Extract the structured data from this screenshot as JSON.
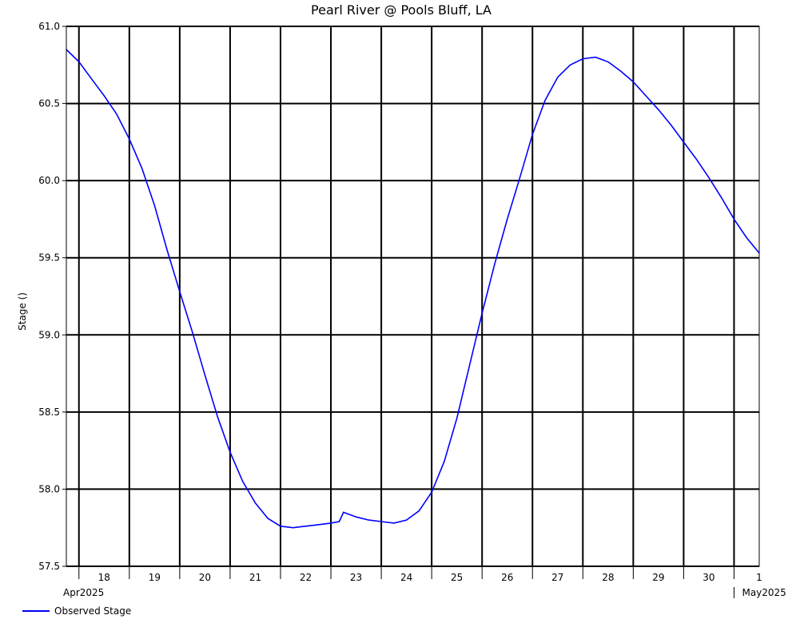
{
  "chart_data": {
    "type": "line",
    "title": "Pearl River @ Pools Bluff, LA",
    "ylabel": "Stage ()",
    "xlabel": "",
    "ylim": [
      57.5,
      61.0
    ],
    "y_ticks": [
      "57.5",
      "58.0",
      "58.5",
      "59.0",
      "59.5",
      "60.0",
      "60.5",
      "61.0"
    ],
    "day_labels": [
      "18",
      "19",
      "20",
      "21",
      "22",
      "23",
      "24",
      "25",
      "26",
      "27",
      "28",
      "29",
      "30",
      "1"
    ],
    "month_labels": [
      {
        "label": "Apr2025",
        "day": "2025-04-18"
      },
      {
        "label": "May2025",
        "day": "2025-05-01"
      }
    ],
    "x_range": [
      "2025-04-17 18:00",
      "2025-05-01 12:00"
    ],
    "grid": true,
    "line_color": "#0000ff",
    "legend": "bottom-left",
    "series": [
      {
        "name": "Observed Stage",
        "x": [
          "2025-04-17 18:00",
          "2025-04-18 00:00",
          "2025-04-18 06:00",
          "2025-04-18 12:00",
          "2025-04-18 18:00",
          "2025-04-19 00:00",
          "2025-04-19 06:00",
          "2025-04-19 12:00",
          "2025-04-19 18:00",
          "2025-04-20 00:00",
          "2025-04-20 06:00",
          "2025-04-20 12:00",
          "2025-04-20 18:00",
          "2025-04-21 00:00",
          "2025-04-21 06:00",
          "2025-04-21 12:00",
          "2025-04-21 18:00",
          "2025-04-22 00:00",
          "2025-04-22 06:00",
          "2025-04-22 12:00",
          "2025-04-22 18:00",
          "2025-04-23 00:00",
          "2025-04-23 04:00",
          "2025-04-23 06:00",
          "2025-04-23 12:00",
          "2025-04-23 18:00",
          "2025-04-24 00:00",
          "2025-04-24 06:00",
          "2025-04-24 12:00",
          "2025-04-24 18:00",
          "2025-04-25 00:00",
          "2025-04-25 06:00",
          "2025-04-25 12:00",
          "2025-04-25 18:00",
          "2025-04-26 00:00",
          "2025-04-26 06:00",
          "2025-04-26 12:00",
          "2025-04-26 18:00",
          "2025-04-27 00:00",
          "2025-04-27 06:00",
          "2025-04-27 12:00",
          "2025-04-27 18:00",
          "2025-04-28 00:00",
          "2025-04-28 06:00",
          "2025-04-28 12:00",
          "2025-04-28 18:00",
          "2025-04-29 00:00",
          "2025-04-29 06:00",
          "2025-04-29 12:00",
          "2025-04-29 18:00",
          "2025-04-30 00:00",
          "2025-04-30 06:00",
          "2025-04-30 12:00",
          "2025-04-30 18:00",
          "2025-05-01 00:00",
          "2025-05-01 06:00",
          "2025-05-01 12:00"
        ],
        "y": [
          60.85,
          60.77,
          60.66,
          60.55,
          60.43,
          60.27,
          60.08,
          59.84,
          59.55,
          59.28,
          59.02,
          58.74,
          58.47,
          58.24,
          58.05,
          57.91,
          57.81,
          57.76,
          57.75,
          57.76,
          57.77,
          57.78,
          57.79,
          57.85,
          57.82,
          57.8,
          57.79,
          57.78,
          57.8,
          57.86,
          57.98,
          58.18,
          58.46,
          58.8,
          59.14,
          59.46,
          59.75,
          60.02,
          60.3,
          60.52,
          60.67,
          60.75,
          60.79,
          60.8,
          60.77,
          60.71,
          60.64,
          60.55,
          60.46,
          60.36,
          60.25,
          60.14,
          60.02,
          59.89,
          59.75,
          59.63,
          59.53
        ]
      }
    ]
  }
}
